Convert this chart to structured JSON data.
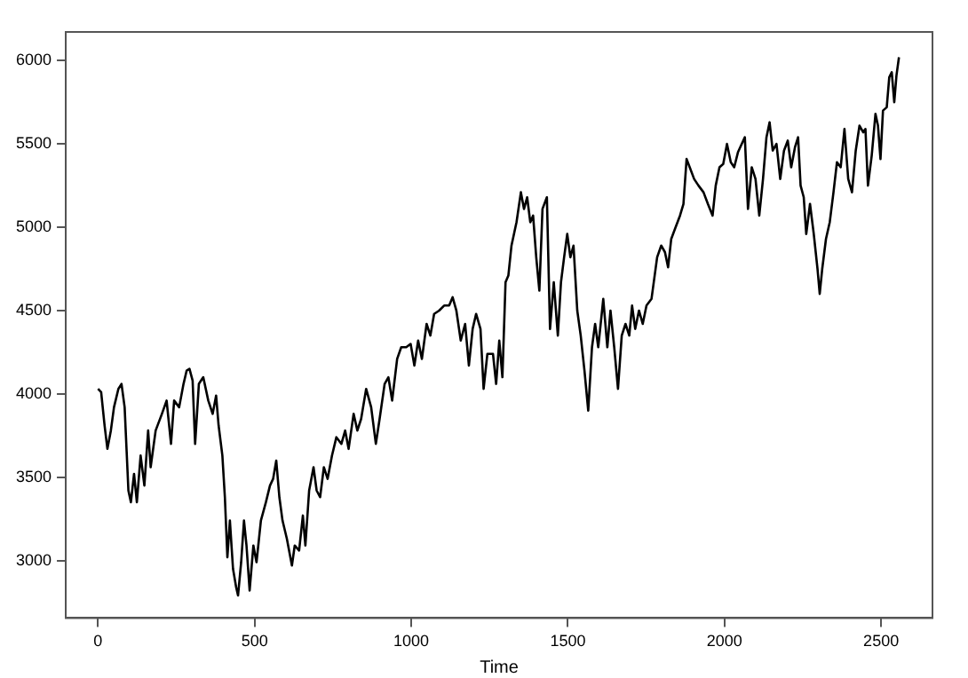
{
  "chart_data": {
    "type": "line",
    "xlabel": "Time",
    "xlim": [
      -103,
      2664
    ],
    "ylim": [
      2655,
      6172
    ],
    "xticks": [
      0,
      500,
      1000,
      1500,
      2000,
      2500
    ],
    "yticks": [
      3000,
      3500,
      4000,
      4500,
      5000,
      5500,
      6000
    ],
    "grid": false,
    "legend": false,
    "marker": "none",
    "series": [
      {
        "color": "#000000",
        "x": [
          0,
          10,
          21,
          30,
          41,
          51,
          65,
          75,
          85,
          97,
          105,
          115,
          124,
          136,
          148,
          160,
          168,
          184,
          204,
          219,
          233,
          243,
          259,
          273,
          283,
          292,
          302,
          310,
          322,
          336,
          352,
          366,
          377,
          385,
          397,
          405,
          413,
          421,
          431,
          441,
          447,
          457,
          466,
          474,
          484,
          496,
          506,
          520,
          536,
          549,
          559,
          569,
          579,
          589,
          603,
          619,
          628,
          642,
          654,
          662,
          674,
          688,
          698,
          709,
          721,
          733,
          747,
          761,
          777,
          789,
          800,
          816,
          828,
          840,
          856,
          872,
          887,
          899,
          915,
          927,
          939,
          955,
          968,
          984,
          998,
          1010,
          1022,
          1034,
          1049,
          1061,
          1073,
          1089,
          1105,
          1121,
          1132,
          1144,
          1158,
          1172,
          1184,
          1196,
          1207,
          1221,
          1231,
          1243,
          1261,
          1271,
          1281,
          1291,
          1301,
          1310,
          1320,
          1336,
          1350,
          1360,
          1370,
          1380,
          1389,
          1399,
          1409,
          1419,
          1433,
          1443,
          1455,
          1468,
          1478,
          1488,
          1498,
          1508,
          1518,
          1530,
          1541,
          1553,
          1565,
          1577,
          1587,
          1597,
          1613,
          1626,
          1636,
          1648,
          1660,
          1672,
          1684,
          1696,
          1705,
          1715,
          1727,
          1739,
          1751,
          1767,
          1785,
          1798,
          1810,
          1820,
          1830,
          1844,
          1858,
          1869,
          1879,
          1889,
          1903,
          1917,
          1933,
          1947,
          1962,
          1972,
          1984,
          1996,
          2008,
          2020,
          2031,
          2043,
          2055,
          2065,
          2075,
          2087,
          2099,
          2111,
          2123,
          2134,
          2144,
          2154,
          2166,
          2178,
          2190,
          2202,
          2213,
          2225,
          2235,
          2243,
          2253,
          2261,
          2273,
          2285,
          2297,
          2304,
          2312,
          2324,
          2336,
          2348,
          2359,
          2371,
          2383,
          2395,
          2407,
          2419,
          2431,
          2443,
          2450,
          2458,
          2470,
          2482,
          2490,
          2498,
          2506,
          2518,
          2526,
          2534,
          2542,
          2549,
          2557
        ],
        "values": [
          4030,
          4010,
          3810,
          3670,
          3780,
          3920,
          4030,
          4060,
          3920,
          3420,
          3350,
          3520,
          3350,
          3630,
          3450,
          3780,
          3560,
          3780,
          3880,
          3960,
          3700,
          3960,
          3920,
          4060,
          4140,
          4150,
          4080,
          3700,
          4060,
          4100,
          3960,
          3880,
          3990,
          3810,
          3630,
          3380,
          3020,
          3240,
          2950,
          2840,
          2790,
          2990,
          3240,
          3090,
          2820,
          3090,
          2990,
          3240,
          3350,
          3450,
          3490,
          3600,
          3380,
          3240,
          3130,
          2970,
          3090,
          3060,
          3270,
          3090,
          3420,
          3560,
          3420,
          3380,
          3560,
          3490,
          3630,
          3740,
          3700,
          3780,
          3670,
          3880,
          3780,
          3850,
          4030,
          3920,
          3700,
          3850,
          4060,
          4100,
          3960,
          4210,
          4280,
          4280,
          4300,
          4170,
          4320,
          4210,
          4420,
          4350,
          4480,
          4500,
          4530,
          4530,
          4580,
          4500,
          4320,
          4420,
          4170,
          4390,
          4480,
          4390,
          4030,
          4240,
          4240,
          4060,
          4320,
          4100,
          4670,
          4710,
          4890,
          5030,
          5210,
          5110,
          5180,
          5030,
          5070,
          4820,
          4620,
          5110,
          5180,
          4390,
          4670,
          4350,
          4670,
          4820,
          4960,
          4820,
          4890,
          4500,
          4350,
          4140,
          3900,
          4280,
          4420,
          4280,
          4570,
          4280,
          4500,
          4280,
          4030,
          4350,
          4420,
          4350,
          4530,
          4390,
          4500,
          4420,
          4530,
          4570,
          4820,
          4890,
          4850,
          4760,
          4930,
          5000,
          5070,
          5140,
          5410,
          5360,
          5290,
          5250,
          5210,
          5140,
          5070,
          5250,
          5360,
          5380,
          5500,
          5390,
          5360,
          5450,
          5500,
          5540,
          5110,
          5360,
          5290,
          5070,
          5290,
          5540,
          5630,
          5460,
          5500,
          5290,
          5460,
          5520,
          5360,
          5480,
          5540,
          5250,
          5180,
          4960,
          5140,
          4960,
          4750,
          4600,
          4750,
          4930,
          5030,
          5210,
          5390,
          5360,
          5590,
          5290,
          5210,
          5460,
          5610,
          5570,
          5590,
          5250,
          5430,
          5680,
          5610,
          5410,
          5700,
          5720,
          5900,
          5930,
          5750,
          5910,
          6020
        ]
      }
    ]
  }
}
